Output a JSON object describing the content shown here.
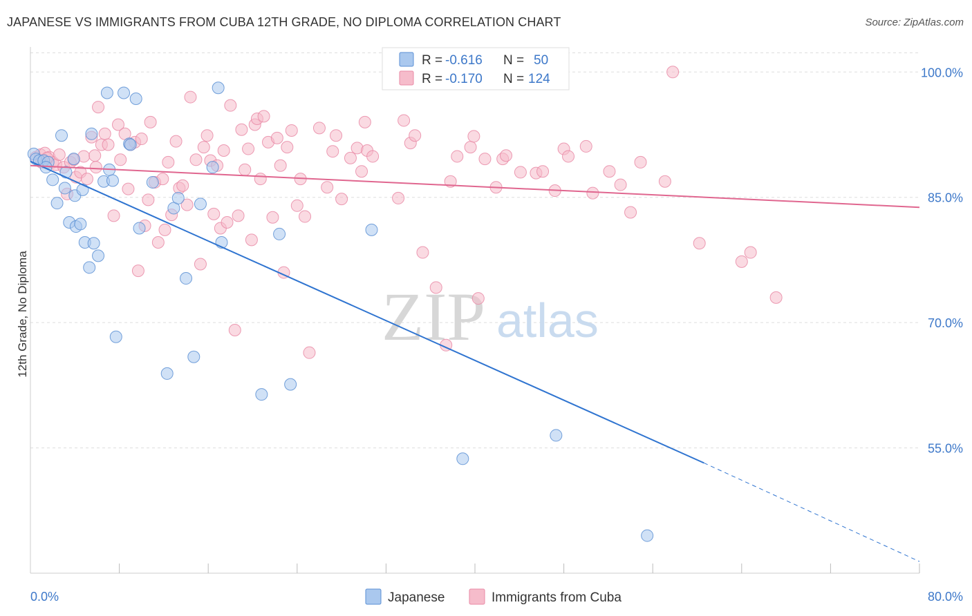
{
  "title": "JAPANESE VS IMMIGRANTS FROM CUBA 12TH GRADE, NO DIPLOMA CORRELATION CHART",
  "source": "Source: ZipAtlas.com",
  "watermark": {
    "zip": "ZIP",
    "atlas": "atlas"
  },
  "colors": {
    "japanese_fill": "#aac8ee",
    "japanese_stroke": "#5b8fd4",
    "japanese_line": "#2f74d0",
    "cuba_fill": "#f6bccb",
    "cuba_stroke": "#e98aa6",
    "cuba_line": "#e0668f",
    "tick_text": "#3d78c9",
    "grid": "#dddddd"
  },
  "legend_top": {
    "rows": [
      {
        "series": "japanese",
        "r_label": "R =",
        "r_value": "-0.616",
        "n_label": "N =",
        "n_value": "50"
      },
      {
        "series": "cuba",
        "r_label": "R =",
        "r_value": "-0.170",
        "n_label": "N =",
        "n_value": "124"
      }
    ]
  },
  "legend_bottom": [
    {
      "series": "japanese",
      "label": "Japanese"
    },
    {
      "series": "cuba",
      "label": "Immigrants from Cuba"
    }
  ],
  "chart_data": {
    "type": "scatter",
    "title": "JAPANESE VS IMMIGRANTS FROM CUBA 12TH GRADE, NO DIPLOMA CORRELATION CHART",
    "xlabel": "",
    "ylabel": "12th Grade, No Diploma",
    "xlim": [
      0,
      80
    ],
    "ylim": [
      40,
      103
    ],
    "x_tick_labels": [
      {
        "value": 0,
        "label": "0.0%"
      },
      {
        "value": 80,
        "label": "80.0%"
      }
    ],
    "y_tick_labels": [
      {
        "value": 100,
        "label": "100.0%"
      },
      {
        "value": 85,
        "label": "85.0%"
      },
      {
        "value": 70,
        "label": "70.0%"
      },
      {
        "value": 55,
        "label": "55.0%"
      }
    ],
    "y_gridlines": [
      100,
      85,
      70,
      55
    ],
    "x_minor_ticks": [
      8,
      16,
      24,
      32,
      40,
      48,
      56,
      64,
      72,
      80
    ],
    "grid": "horizontal dashed",
    "legend_position": "top-center",
    "series": [
      {
        "name": "Japanese",
        "key": "japanese",
        "r": -0.616,
        "n": 50,
        "trend": {
          "x": [
            0,
            60.6
          ],
          "y": [
            89.3,
            53.2
          ]
        },
        "trend_extension": {
          "x": [
            60.6,
            80
          ],
          "y": [
            53.2,
            41.4
          ]
        },
        "points": [
          [
            0.3,
            90.2
          ],
          [
            0.5,
            89.6
          ],
          [
            0.8,
            89.4
          ],
          [
            1.2,
            89.4
          ],
          [
            1.6,
            89.2
          ],
          [
            1.4,
            88.6
          ],
          [
            2.0,
            87.1
          ],
          [
            2.4,
            84.3
          ],
          [
            2.8,
            92.4
          ],
          [
            3.1,
            86.1
          ],
          [
            3.2,
            88.0
          ],
          [
            3.5,
            82.0
          ],
          [
            4.0,
            85.2
          ],
          [
            4.1,
            81.5
          ],
          [
            4.5,
            81.8
          ],
          [
            4.7,
            85.9
          ],
          [
            4.9,
            79.6
          ],
          [
            5.3,
            76.6
          ],
          [
            5.5,
            92.6
          ],
          [
            5.7,
            79.5
          ],
          [
            6.1,
            78.0
          ],
          [
            6.6,
            86.9
          ],
          [
            6.9,
            97.5
          ],
          [
            7.1,
            88.3
          ],
          [
            7.4,
            87.0
          ],
          [
            7.7,
            68.3
          ],
          [
            8.4,
            97.5
          ],
          [
            8.9,
            91.4
          ],
          [
            9.0,
            91.3
          ],
          [
            9.5,
            96.8
          ],
          [
            9.8,
            81.3
          ],
          [
            11.0,
            86.8
          ],
          [
            12.3,
            63.9
          ],
          [
            12.9,
            83.7
          ],
          [
            13.3,
            84.9
          ],
          [
            14.0,
            75.3
          ],
          [
            14.7,
            65.9
          ],
          [
            15.3,
            84.2
          ],
          [
            16.4,
            88.6
          ],
          [
            16.9,
            98.1
          ],
          [
            17.2,
            79.6
          ],
          [
            20.8,
            61.4
          ],
          [
            22.4,
            80.6
          ],
          [
            23.4,
            62.6
          ],
          [
            30.7,
            81.1
          ],
          [
            37.0,
            100.0
          ],
          [
            38.9,
            53.7
          ],
          [
            47.3,
            56.5
          ],
          [
            55.5,
            44.5
          ],
          [
            3.9,
            89.6
          ]
        ]
      },
      {
        "name": "Immigrants from Cuba",
        "key": "cuba",
        "r": -0.17,
        "n": 124,
        "trend": {
          "x": [
            0,
            80
          ],
          "y": [
            88.8,
            83.8
          ]
        },
        "points": [
          [
            0.5,
            89.8
          ],
          [
            0.9,
            90.1
          ],
          [
            1.0,
            89.2
          ],
          [
            1.3,
            90.3
          ],
          [
            1.7,
            89.8
          ],
          [
            2.0,
            89.2
          ],
          [
            2.3,
            88.9
          ],
          [
            2.6,
            90.1
          ],
          [
            3.0,
            88.6
          ],
          [
            3.3,
            85.4
          ],
          [
            3.6,
            89.2
          ],
          [
            3.9,
            89.5
          ],
          [
            4.1,
            87.4
          ],
          [
            4.5,
            88.0
          ],
          [
            4.8,
            89.9
          ],
          [
            5.1,
            87.2
          ],
          [
            5.5,
            92.2
          ],
          [
            5.8,
            90.0
          ],
          [
            6.1,
            95.8
          ],
          [
            6.4,
            91.3
          ],
          [
            6.7,
            92.6
          ],
          [
            7.0,
            91.3
          ],
          [
            7.5,
            82.8
          ],
          [
            7.9,
            93.7
          ],
          [
            8.1,
            89.5
          ],
          [
            8.5,
            92.6
          ],
          [
            8.8,
            86.0
          ],
          [
            9.0,
            91.3
          ],
          [
            9.4,
            91.6
          ],
          [
            9.7,
            76.2
          ],
          [
            10.0,
            92.0
          ],
          [
            10.3,
            81.6
          ],
          [
            10.6,
            84.7
          ],
          [
            10.8,
            94.0
          ],
          [
            11.2,
            86.8
          ],
          [
            11.5,
            79.6
          ],
          [
            11.9,
            87.2
          ],
          [
            12.1,
            81.1
          ],
          [
            12.4,
            89.2
          ],
          [
            12.7,
            82.9
          ],
          [
            13.1,
            91.7
          ],
          [
            13.4,
            86.1
          ],
          [
            13.7,
            86.4
          ],
          [
            14.1,
            84.1
          ],
          [
            14.4,
            97.0
          ],
          [
            14.9,
            89.5
          ],
          [
            15.3,
            77.0
          ],
          [
            15.6,
            91.0
          ],
          [
            15.9,
            92.4
          ],
          [
            16.2,
            89.4
          ],
          [
            16.5,
            83.0
          ],
          [
            16.8,
            88.8
          ],
          [
            17.1,
            81.3
          ],
          [
            17.4,
            90.6
          ],
          [
            17.7,
            82.0
          ],
          [
            18.0,
            96.0
          ],
          [
            18.4,
            69.1
          ],
          [
            18.7,
            82.8
          ],
          [
            19.0,
            93.1
          ],
          [
            19.3,
            88.3
          ],
          [
            19.6,
            90.8
          ],
          [
            19.9,
            79.9
          ],
          [
            20.2,
            93.7
          ],
          [
            20.4,
            94.4
          ],
          [
            20.7,
            87.2
          ],
          [
            21.0,
            94.7
          ],
          [
            21.4,
            91.6
          ],
          [
            21.8,
            82.6
          ],
          [
            22.2,
            92.1
          ],
          [
            22.5,
            88.8
          ],
          [
            22.8,
            76.0
          ],
          [
            23.1,
            91.0
          ],
          [
            23.5,
            93.0
          ],
          [
            24.0,
            84.0
          ],
          [
            24.3,
            87.2
          ],
          [
            24.7,
            82.7
          ],
          [
            25.1,
            66.4
          ],
          [
            26.0,
            93.3
          ],
          [
            26.7,
            86.2
          ],
          [
            27.2,
            90.5
          ],
          [
            27.5,
            92.4
          ],
          [
            28.0,
            84.8
          ],
          [
            28.8,
            89.7
          ],
          [
            29.4,
            90.9
          ],
          [
            29.8,
            88.1
          ],
          [
            30.1,
            94.0
          ],
          [
            30.3,
            90.6
          ],
          [
            30.8,
            89.9
          ],
          [
            33.1,
            84.9
          ],
          [
            33.6,
            94.2
          ],
          [
            34.2,
            91.5
          ],
          [
            34.6,
            92.4
          ],
          [
            35.3,
            78.4
          ],
          [
            36.5,
            74.2
          ],
          [
            37.4,
            67.3
          ],
          [
            37.8,
            86.9
          ],
          [
            38.4,
            89.9
          ],
          [
            39.6,
            91.0
          ],
          [
            39.9,
            92.3
          ],
          [
            40.3,
            72.9
          ],
          [
            40.9,
            89.6
          ],
          [
            41.9,
            86.2
          ],
          [
            42.5,
            89.6
          ],
          [
            42.8,
            90.0
          ],
          [
            44.1,
            88.0
          ],
          [
            45.5,
            87.9
          ],
          [
            46.1,
            88.1
          ],
          [
            47.2,
            85.8
          ],
          [
            48.0,
            90.8
          ],
          [
            48.4,
            89.9
          ],
          [
            50.6,
            85.5
          ],
          [
            50.0,
            91.1
          ],
          [
            52.1,
            88.1
          ],
          [
            53.1,
            86.5
          ],
          [
            54.0,
            83.2
          ],
          [
            54.9,
            89.2
          ],
          [
            57.1,
            86.9
          ],
          [
            57.8,
            100.0
          ],
          [
            60.2,
            79.5
          ],
          [
            64.0,
            77.3
          ],
          [
            64.8,
            78.4
          ],
          [
            67.1,
            73.0
          ],
          [
            1.5,
            89.7
          ],
          [
            5.9,
            88.6
          ]
        ]
      }
    ]
  }
}
